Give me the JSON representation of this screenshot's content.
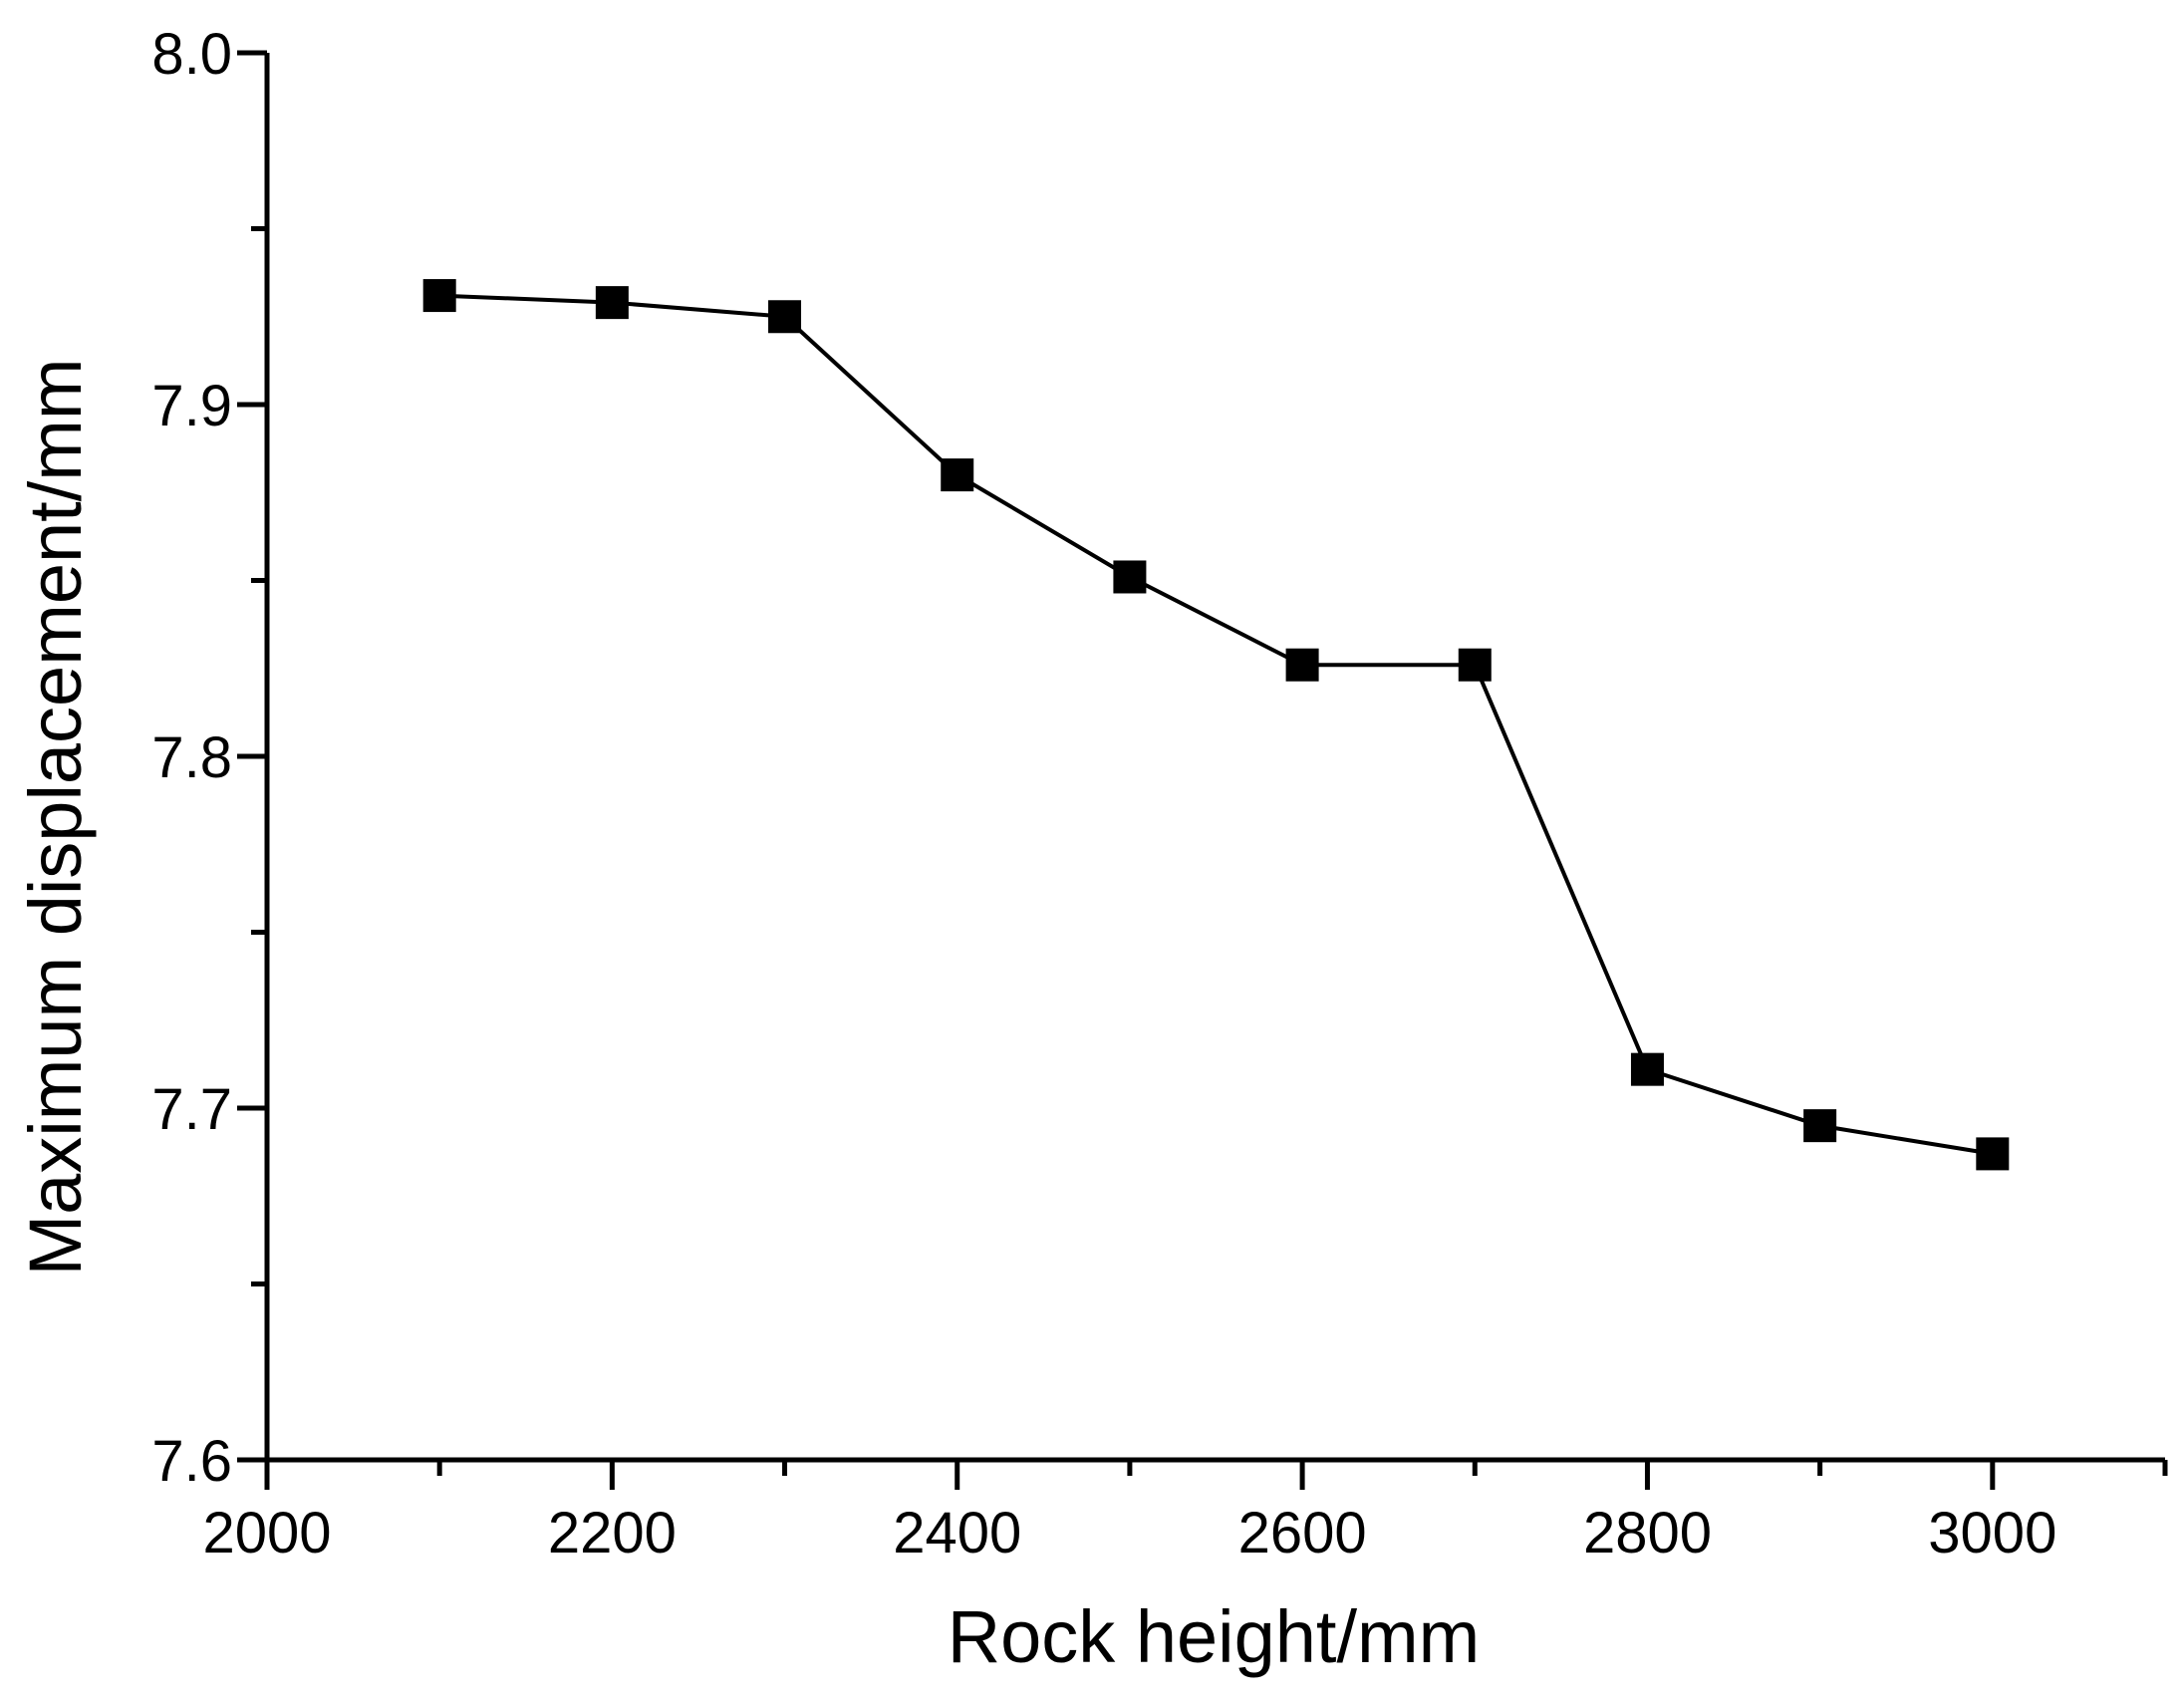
{
  "chart_data": {
    "type": "line",
    "title": "",
    "xlabel": "Rock height/mm",
    "ylabel": "Maximum displacement/mm",
    "x": [
      2100,
      2200,
      2300,
      2400,
      2500,
      2600,
      2700,
      2800,
      2900,
      3000
    ],
    "y": [
      7.931,
      7.929,
      7.925,
      7.88,
      7.851,
      7.826,
      7.826,
      7.711,
      7.695,
      7.687
    ],
    "xlim": [
      2000,
      3100
    ],
    "ylim": [
      7.6,
      8.0
    ],
    "x_major_ticks": {
      "values": [
        2000,
        2200,
        2400,
        2600,
        2800,
        3000
      ],
      "labels": [
        "2000",
        "2200",
        "2400",
        "2600",
        "2800",
        "3000"
      ]
    },
    "x_minor_ticks": [
      2100,
      2300,
      2500,
      2700,
      2900,
      3100
    ],
    "y_major_ticks": {
      "values": [
        7.6,
        7.7,
        7.8,
        7.9,
        8.0
      ],
      "labels": [
        "7.6",
        "7.7",
        "7.8",
        "7.9",
        "8.0"
      ]
    },
    "y_minor_ticks": [
      7.65,
      7.75,
      7.85,
      7.95
    ],
    "marker": "square",
    "grid": false,
    "legend": null,
    "colors": {
      "line": "#000000",
      "marker": "#000000",
      "axis": "#000000",
      "text": "#000000",
      "background": "#ffffff"
    }
  }
}
